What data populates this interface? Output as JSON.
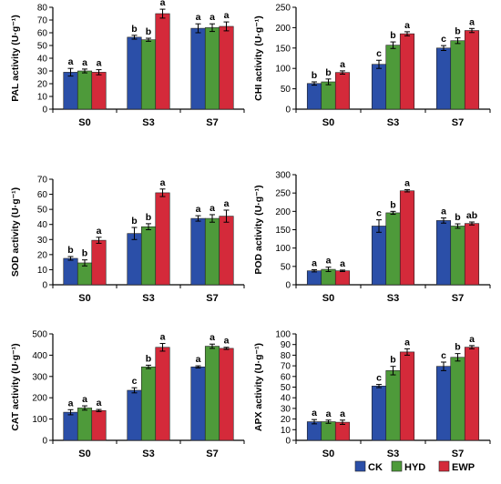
{
  "figure": {
    "legend": [
      {
        "name": "CK",
        "color": "#2b4fa8"
      },
      {
        "name": "HYD",
        "color": "#4e9a3a"
      },
      {
        "name": "EWP",
        "color": "#d42a3a"
      }
    ]
  },
  "chart_data": [
    {
      "type": "bar",
      "ylabel": "PAL activity (U·g⁻¹)",
      "categories": [
        "S0",
        "S3",
        "S7"
      ],
      "ylim": [
        0,
        80
      ],
      "yticks": [
        0,
        10,
        20,
        30,
        40,
        50,
        60,
        70,
        80
      ],
      "series": [
        {
          "name": "CK",
          "values": [
            29,
            56.5,
            63.5
          ],
          "errors": [
            3,
            1.5,
            3.5
          ],
          "letters": [
            "a",
            "b",
            "a"
          ]
        },
        {
          "name": "HYD",
          "values": [
            30,
            54.5,
            64
          ],
          "errors": [
            1.5,
            1.2,
            3
          ],
          "letters": [
            "a",
            "b",
            "a"
          ]
        },
        {
          "name": "EWP",
          "values": [
            29,
            75,
            65
          ],
          "errors": [
            2,
            3.5,
            3.5
          ],
          "letters": [
            "a",
            "a",
            "a"
          ]
        }
      ]
    },
    {
      "type": "bar",
      "ylabel": "CHI activity (U·g⁻¹)",
      "categories": [
        "S0",
        "S3",
        "S7"
      ],
      "ylim": [
        0,
        250
      ],
      "yticks": [
        0,
        50,
        100,
        150,
        200,
        250
      ],
      "series": [
        {
          "name": "CK",
          "values": [
            63,
            110,
            150
          ],
          "errors": [
            4,
            10,
            6
          ],
          "letters": [
            "b",
            "c",
            "c"
          ]
        },
        {
          "name": "HYD",
          "values": [
            67,
            157,
            168
          ],
          "errors": [
            7,
            8,
            7
          ],
          "letters": [
            "b",
            "b",
            "b"
          ]
        },
        {
          "name": "EWP",
          "values": [
            90,
            185,
            193
          ],
          "errors": [
            4,
            5,
            5
          ],
          "letters": [
            "a",
            "a",
            "a"
          ]
        }
      ]
    },
    {
      "type": "bar",
      "ylabel": "SOD activity (U·g⁻¹)",
      "categories": [
        "S0",
        "S3",
        "S7"
      ],
      "ylim": [
        0,
        70
      ],
      "yticks": [
        0,
        10,
        20,
        30,
        40,
        50,
        60,
        70
      ],
      "series": [
        {
          "name": "CK",
          "values": [
            17.5,
            34,
            44
          ],
          "errors": [
            1.2,
            4,
            1.8
          ],
          "letters": [
            "b",
            "b",
            "a"
          ]
        },
        {
          "name": "HYD",
          "values": [
            14.5,
            38.5,
            44
          ],
          "errors": [
            2,
            2,
            2.5
          ],
          "letters": [
            "b",
            "b",
            "a"
          ]
        },
        {
          "name": "EWP",
          "values": [
            29.5,
            61,
            45.5
          ],
          "errors": [
            2,
            2.5,
            4
          ],
          "letters": [
            "a",
            "a",
            "a"
          ]
        }
      ]
    },
    {
      "type": "bar",
      "ylabel": "POD activity (U·g⁻¹)",
      "categories": [
        "S0",
        "S3",
        "S7"
      ],
      "ylim": [
        0,
        300
      ],
      "yticks": [
        0,
        50,
        100,
        150,
        200,
        250,
        300
      ],
      "series": [
        {
          "name": "CK",
          "values": [
            38,
            160,
            175
          ],
          "errors": [
            3,
            17,
            7
          ],
          "letters": [
            "a",
            "c",
            "a"
          ]
        },
        {
          "name": "HYD",
          "values": [
            42,
            196,
            160
          ],
          "errors": [
            6,
            4,
            6
          ],
          "letters": [
            "a",
            "b",
            "b"
          ]
        },
        {
          "name": "EWP",
          "values": [
            38,
            256,
            167
          ],
          "errors": [
            2,
            3,
            4
          ],
          "letters": [
            "a",
            "a",
            "ab"
          ]
        }
      ]
    },
    {
      "type": "bar",
      "ylabel": "CAT activity (U·g⁻¹)",
      "categories": [
        "S0",
        "S3",
        "S7"
      ],
      "ylim": [
        0,
        500
      ],
      "yticks": [
        0,
        100,
        200,
        300,
        400,
        500
      ],
      "series": [
        {
          "name": "CK",
          "values": [
            132,
            235,
            345
          ],
          "errors": [
            12,
            12,
            5
          ],
          "letters": [
            "a",
            "c",
            "a"
          ]
        },
        {
          "name": "HYD",
          "values": [
            152,
            345,
            442
          ],
          "errors": [
            10,
            8,
            10
          ],
          "letters": [
            "a",
            "b",
            "a"
          ]
        },
        {
          "name": "EWP",
          "values": [
            140,
            437,
            432
          ],
          "errors": [
            5,
            18,
            5
          ],
          "letters": [
            "a",
            "a",
            "a"
          ]
        }
      ]
    },
    {
      "type": "bar",
      "ylabel": "APX activity (U·g⁻¹)",
      "categories": [
        "S0",
        "S3",
        "S7"
      ],
      "ylim": [
        0,
        100
      ],
      "yticks": [
        0,
        10,
        20,
        30,
        40,
        50,
        60,
        70,
        80,
        90,
        100
      ],
      "series": [
        {
          "name": "CK",
          "values": [
            17.5,
            51,
            69.5
          ],
          "errors": [
            2,
            1.5,
            4
          ],
          "letters": [
            "a",
            "c",
            "c"
          ]
        },
        {
          "name": "HYD",
          "values": [
            17.5,
            65.5,
            78
          ],
          "errors": [
            1.5,
            4,
            3.5
          ],
          "letters": [
            "a",
            "b",
            "b"
          ]
        },
        {
          "name": "EWP",
          "values": [
            17,
            83,
            87.5
          ],
          "errors": [
            2,
            3,
            1.5
          ],
          "letters": [
            "a",
            "a",
            "a"
          ]
        }
      ]
    }
  ]
}
